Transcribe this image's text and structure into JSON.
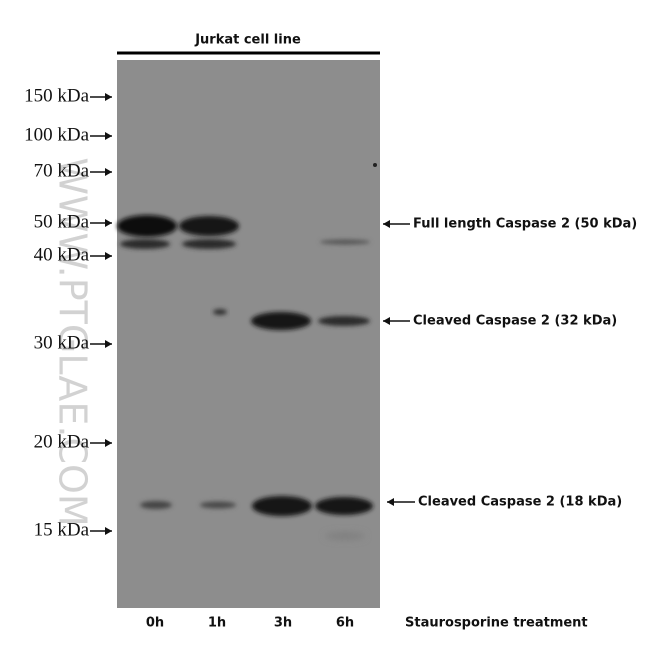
{
  "header": {
    "title": "Jurkat cell line"
  },
  "markers": [
    {
      "label": "150 kDa"
    },
    {
      "label": "100 kDa"
    },
    {
      "label": "70 kDa"
    },
    {
      "label": "50 kDa"
    },
    {
      "label": "40 kDa"
    },
    {
      "label": "30 kDa"
    },
    {
      "label": "20 kDa"
    },
    {
      "label": "15 kDa"
    }
  ],
  "lanes": [
    "0h",
    "1h",
    "3h",
    "6h"
  ],
  "treatment": "Staurosporine treatment",
  "annotations": [
    {
      "label": "Full length Caspase 2 (50 kDa)"
    },
    {
      "label": "Cleaved Caspase 2 (32 kDa)"
    },
    {
      "label": "Cleaved Caspase 2 (18 kDa)"
    }
  ],
  "watermark": "WWW.PTGLAE.COM"
}
